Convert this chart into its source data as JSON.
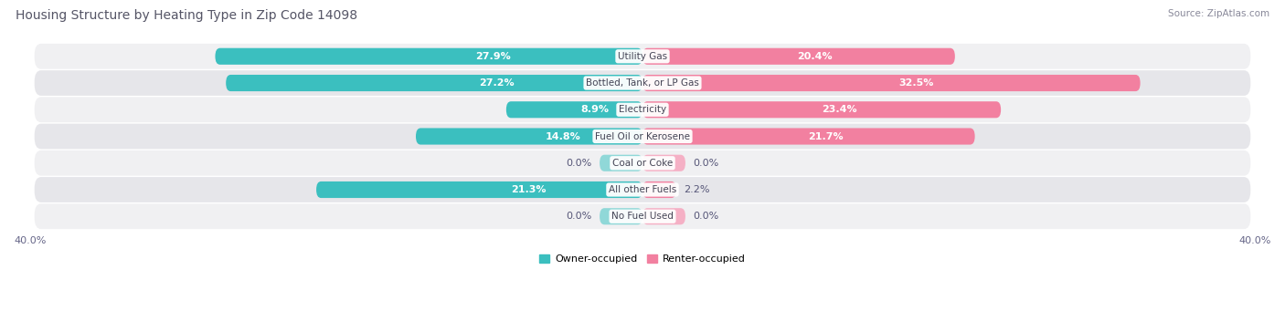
{
  "title": "Housing Structure by Heating Type in Zip Code 14098",
  "source": "Source: ZipAtlas.com",
  "categories": [
    "Utility Gas",
    "Bottled, Tank, or LP Gas",
    "Electricity",
    "Fuel Oil or Kerosene",
    "Coal or Coke",
    "All other Fuels",
    "No Fuel Used"
  ],
  "owner_values": [
    27.9,
    27.2,
    8.9,
    14.8,
    0.0,
    21.3,
    0.0
  ],
  "renter_values": [
    20.4,
    32.5,
    23.4,
    21.7,
    0.0,
    2.2,
    0.0
  ],
  "owner_color": "#3bbfbf",
  "renter_color": "#f280a0",
  "owner_color_light": "#90d8d8",
  "renter_color_light": "#f5b0c5",
  "axis_max": 40.0,
  "bar_height": 0.62,
  "title_fontsize": 10,
  "source_fontsize": 7.5,
  "label_fontsize": 8,
  "category_fontsize": 7.5,
  "legend_fontsize": 8,
  "axis_label_fontsize": 8,
  "background_color": "#ffffff",
  "row_bg_even": "#f0f0f2",
  "row_bg_odd": "#e6e6ea"
}
